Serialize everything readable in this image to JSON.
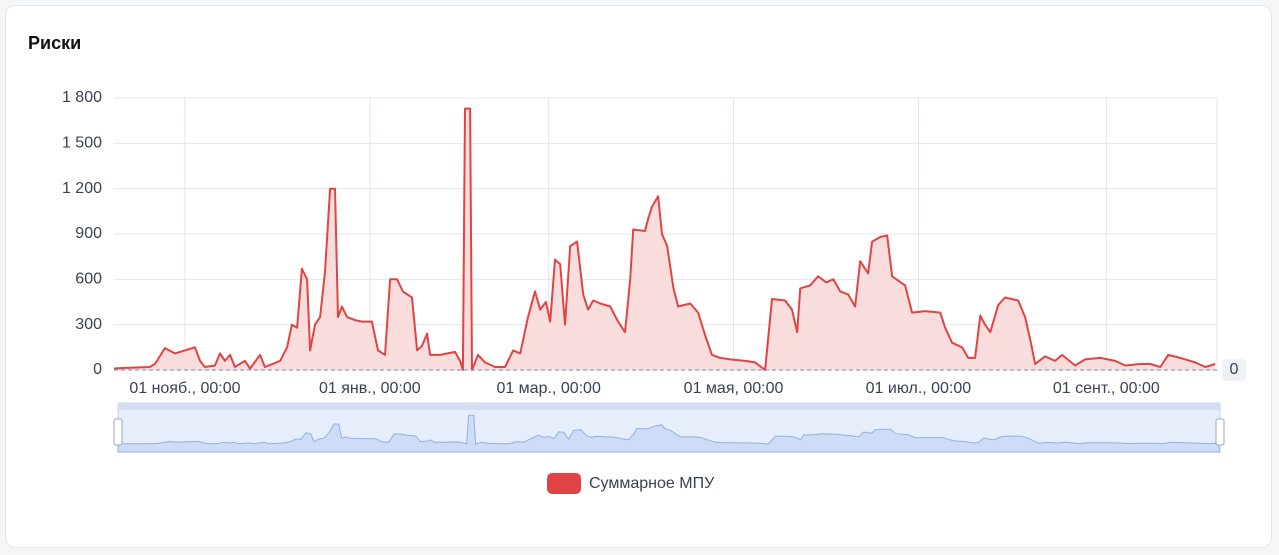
{
  "chart_data": {
    "type": "line",
    "title": "Риски",
    "x": [
      -23.4,
      -18.2,
      -11.6,
      -9.9,
      -6.6,
      -3.3,
      0,
      3.3,
      5,
      6.6,
      9.9,
      11.6,
      13.2,
      14.9,
      16.5,
      19.8,
      21.5,
      24.8,
      26.4,
      31.4,
      33.7,
      35.3,
      37,
      38.6,
      40.3,
      41.3,
      42.9,
      44.6,
      46.2,
      47.9,
      49.5,
      50.5,
      51.8,
      53.5,
      56.1,
      58.4,
      61.7,
      63.7,
      66,
      67.7,
      70,
      71.9,
      74.9,
      76.6,
      78.2,
      79.9,
      80.9,
      84.2,
      89.1,
      90.8,
      91.7,
      92.4,
      94.1,
      94.7,
      96.7,
      99,
      102.3,
      105.6,
      108.3,
      110.6,
      113.2,
      115.5,
      117.2,
      119.1,
      120.5,
      122.1,
      123.8,
      125.4,
      127.1,
      129.4,
      131.4,
      133,
      134.7,
      137,
      140.3,
      142.9,
      145.2,
      146.9,
      147.9,
      151.8,
      152.8,
      154.1,
      156.1,
      157.4,
      159.1,
      161.1,
      162.7,
      166.7,
      169.3,
      171.6,
      173.9,
      176.6,
      179.9,
      184.8,
      188.1,
      191.4,
      193.7,
      198,
      200.3,
      202,
      203,
      206.3,
      208.9,
      211.6,
      213.9,
      216.2,
      218.8,
      221.1,
      222.8,
      225.4,
      226.7,
      229.4,
      231.7,
      233.3,
      237.6,
      239.9,
      244.2,
      249.2,
      250.8,
      253.1,
      256.4,
      258.4,
      260.7,
      262.4,
      264,
      265.7,
      268.3,
      270.6,
      274.9,
      277.2,
      278.9,
      280.5,
      283.8,
      287.1,
      289.4,
      293.7,
      297,
      302,
      306.9,
      310.2,
      315.2,
      318.5,
      321.8,
      324.4,
      328.4,
      333.3,
      336.6,
      339.9
    ],
    "series": [
      {
        "name": "Суммарное МПУ",
        "color": "#e04444",
        "area_color": "#f9dcdc",
        "values": [
          10,
          15,
          20,
          40,
          145,
          110,
          130,
          150,
          60,
          20,
          30,
          110,
          60,
          100,
          20,
          60,
          10,
          100,
          20,
          60,
          150,
          300,
          280,
          670,
          600,
          130,
          300,
          350,
          650,
          1200,
          1200,
          350,
          420,
          350,
          330,
          320,
          320,
          130,
          100,
          600,
          600,
          520,
          480,
          130,
          160,
          240,
          100,
          100,
          120,
          60,
          0,
          1730,
          1730,
          0,
          100,
          50,
          20,
          20,
          130,
          110,
          350,
          520,
          400,
          450,
          320,
          730,
          700,
          300,
          820,
          850,
          500,
          400,
          460,
          440,
          420,
          320,
          250,
          600,
          930,
          920,
          1000,
          1080,
          1150,
          900,
          820,
          550,
          420,
          440,
          380,
          230,
          100,
          80,
          70,
          60,
          50,
          0,
          470,
          460,
          400,
          250,
          540,
          560,
          620,
          580,
          600,
          520,
          500,
          420,
          720,
          640,
          850,
          880,
          890,
          620,
          560,
          380,
          390,
          380,
          280,
          180,
          150,
          80,
          80,
          360,
          300,
          250,
          430,
          480,
          460,
          350,
          200,
          40,
          90,
          60,
          100,
          30,
          70,
          80,
          60,
          30,
          40,
          40,
          20,
          100,
          80,
          50,
          20,
          40
        ]
      }
    ],
    "xlim": [
      -23.4,
      340.5
    ],
    "xticks": [
      {
        "value": 0,
        "label": "01 нояб., 00:00"
      },
      {
        "value": 61,
        "label": "01 янв., 00:00"
      },
      {
        "value": 120,
        "label": "01 мар., 00:00"
      },
      {
        "value": 181,
        "label": "01 мая, 00:00"
      },
      {
        "value": 242,
        "label": "01 июл., 00:00"
      },
      {
        "value": 304,
        "label": "01 сент., 00:00"
      }
    ],
    "ylim": [
      0,
      1800
    ],
    "yticks": [
      0,
      300,
      600,
      900,
      {
        "value": 1200,
        "label": "1 200"
      },
      {
        "value": 1500,
        "label": "1 500"
      },
      {
        "value": 1800,
        "label": "1 800"
      }
    ],
    "markline": 0,
    "grid": true,
    "legend": "bottom"
  }
}
